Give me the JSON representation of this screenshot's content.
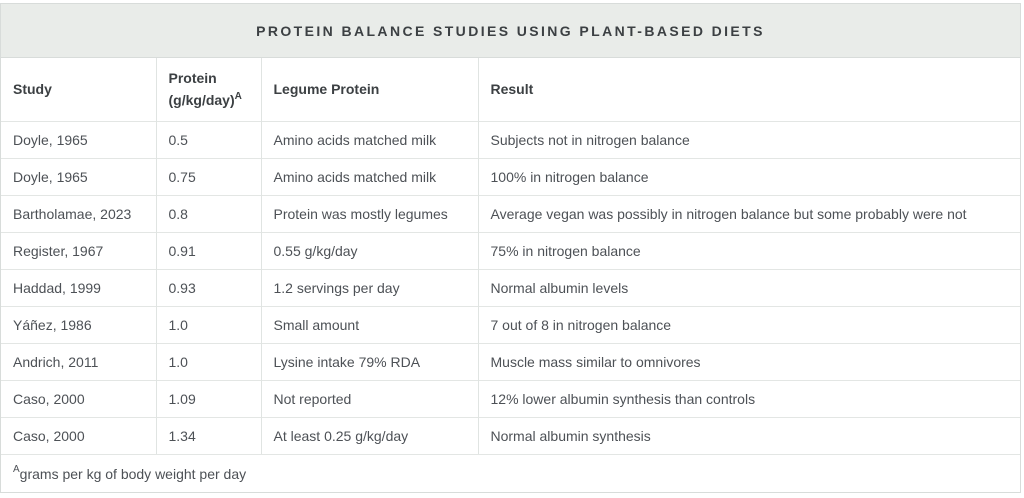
{
  "chart_data": {
    "type": "table",
    "title": "PROTEIN BALANCE STUDIES USING PLANT-BASED DIETS",
    "columns": [
      {
        "key": "study",
        "label": "Study"
      },
      {
        "key": "protein",
        "label_line1": "Protein",
        "label_line2": "(g/kg/day)",
        "superscript": "A"
      },
      {
        "key": "legume-protein",
        "label": "Legume Protein"
      },
      {
        "key": "result",
        "label": "Result"
      }
    ],
    "rows": [
      [
        "Doyle, 1965",
        "0.5",
        "Amino acids matched milk",
        "Subjects not in nitrogen balance"
      ],
      [
        "Doyle, 1965",
        "0.75",
        "Amino acids matched milk",
        "100% in nitrogen balance"
      ],
      [
        "Bartholamae, 2023",
        "0.8",
        "Protein was mostly legumes",
        "Average vegan was possibly in nitrogen balance but some probably were not"
      ],
      [
        "Register, 1967",
        "0.91",
        "0.55 g/kg/day",
        "75% in nitrogen balance"
      ],
      [
        "Haddad, 1999",
        "0.93",
        "1.2 servings per day",
        "Normal albumin levels"
      ],
      [
        "Yáñez, 1986",
        "1.0",
        "Small amount",
        "7 out of 8 in nitrogen balance"
      ],
      [
        "Andrich, 2011",
        "1.0",
        "Lysine intake 79% RDA",
        "Muscle mass similar to omnivores"
      ],
      [
        "Caso, 2000",
        "1.09",
        "Not reported",
        "12% lower albumin synthesis than controls"
      ],
      [
        "Caso, 2000",
        "1.34",
        "At least 0.25 g/kg/day",
        "Normal albumin synthesis"
      ]
    ],
    "footnote": {
      "superscript": "A",
      "text": "grams per kg of body weight per day"
    },
    "layout": {
      "grid": "ruled rows and columns",
      "legend_position": "none"
    }
  },
  "colors": {
    "title_bar_bg": "#e9ece9",
    "border_outer": "#d8dcda",
    "border_row": "#e3e6e4",
    "border_col": "#e0e4e2",
    "title_text": "#3c4043",
    "header_text": "#3c4043",
    "body_text": "#4d5156",
    "card_bg": "#ffffff"
  }
}
